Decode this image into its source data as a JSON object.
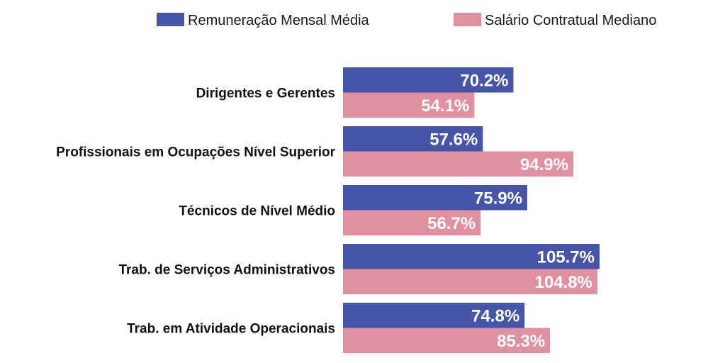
{
  "chart_data": {
    "type": "bar",
    "orientation": "horizontal",
    "categories": [
      "Dirigentes e Gerentes",
      "Profissionais em Ocupações Nível Superior",
      "Técnicos de Nível Médio",
      "Trab. de Serviços Administrativos",
      "Trab. em Atividade Operacionais"
    ],
    "series": [
      {
        "name": "Remuneração Mensal Média",
        "color": "#4655a8",
        "values": [
          70.2,
          57.6,
          75.9,
          105.7,
          74.8
        ]
      },
      {
        "name": "Salário Contratual Mediano",
        "color": "#e0919f",
        "values": [
          54.1,
          94.9,
          56.7,
          104.8,
          85.3
        ]
      }
    ],
    "value_suffix": "%",
    "xlim": [
      0,
      105.7
    ],
    "legend_position": "top",
    "grid": false
  }
}
